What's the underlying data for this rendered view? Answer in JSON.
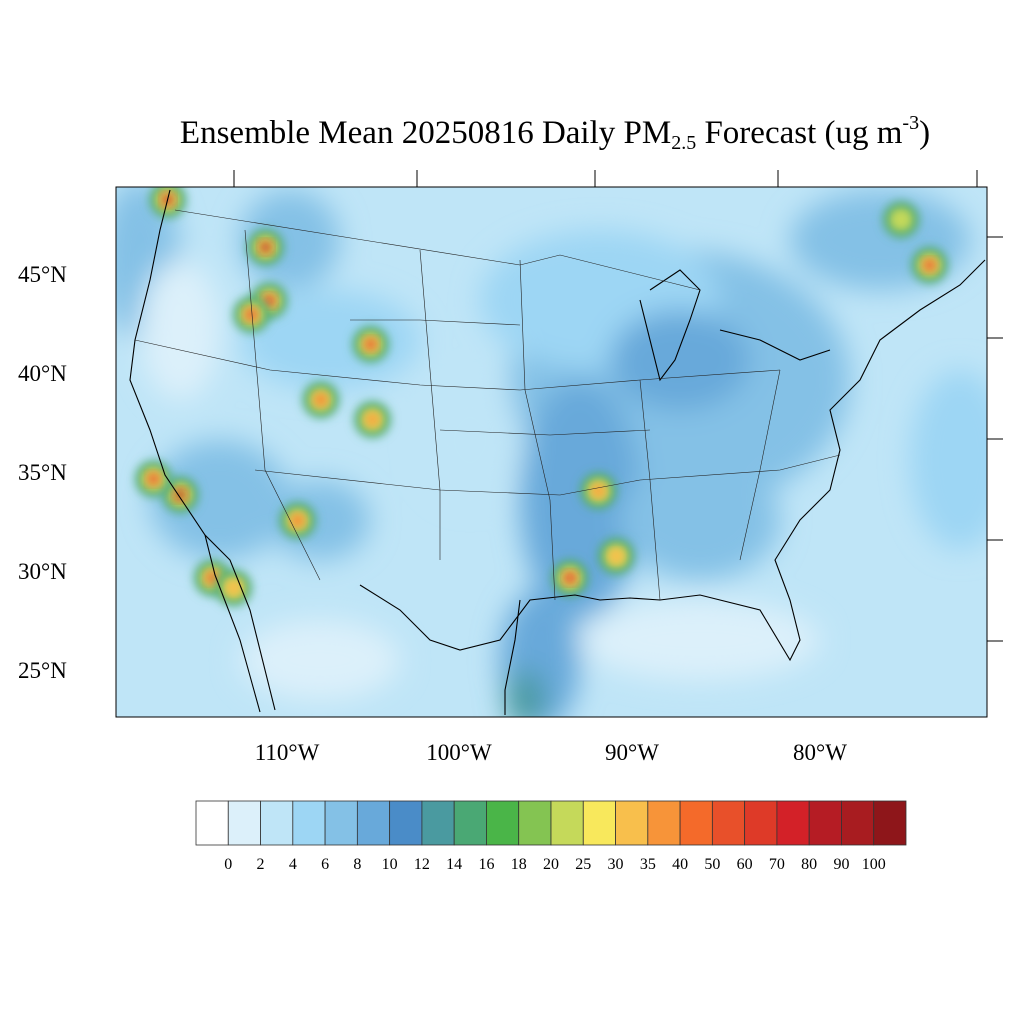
{
  "title": {
    "main": "Ensemble Mean 20250816 Daily PM",
    "sub": "2.5",
    "mid": " Forecast (ug m",
    "sup": "-3",
    "end": ")"
  },
  "lat_labels": [
    "45°N",
    "40°N",
    "35°N",
    "30°N",
    "25°N"
  ],
  "lon_labels": [
    "110°W",
    "100°W",
    "90°W",
    "80°W"
  ],
  "colorbar": {
    "labels": [
      "0",
      "2",
      "4",
      "6",
      "8",
      "10",
      "12",
      "14",
      "16",
      "18",
      "20",
      "25",
      "30",
      "35",
      "40",
      "50",
      "60",
      "70",
      "80",
      "90",
      "100"
    ],
    "colors": [
      "#ffffff",
      "#dcf0fa",
      "#bfe5f7",
      "#9dd6f4",
      "#84c1e6",
      "#68a9da",
      "#4a8cc8",
      "#4a9aa0",
      "#4aa874",
      "#4ab548",
      "#84c452",
      "#c5d95a",
      "#f8e85c",
      "#f8bf4c",
      "#f79439",
      "#f46a2a",
      "#e8502a",
      "#de3a28",
      "#d32128",
      "#b51c24",
      "#a81c20",
      "#8e161a"
    ]
  },
  "hotspots": [
    {
      "lon": -116.7,
      "lat": 48.8,
      "value": 80
    },
    {
      "lon": -111.2,
      "lat": 46.4,
      "value": 90
    },
    {
      "lon": -111.0,
      "lat": 43.7,
      "value": 70
    },
    {
      "lon": -112.0,
      "lat": 43.0,
      "value": 60
    },
    {
      "lon": -105.3,
      "lat": 41.5,
      "value": 60
    },
    {
      "lon": -108.1,
      "lat": 38.7,
      "value": 40
    },
    {
      "lon": -105.2,
      "lat": 37.7,
      "value": 35
    },
    {
      "lon": -116.0,
      "lat": 33.9,
      "value": 100
    },
    {
      "lon": -117.5,
      "lat": 34.7,
      "value": 60
    },
    {
      "lon": -114.2,
      "lat": 29.7,
      "value": 50
    },
    {
      "lon": -113.0,
      "lat": 29.2,
      "value": 30
    },
    {
      "lon": -109.4,
      "lat": 32.6,
      "value": 40
    },
    {
      "lon": -94.1,
      "lat": 29.7,
      "value": 70
    },
    {
      "lon": -92.5,
      "lat": 34.1,
      "value": 35
    },
    {
      "lon": -91.5,
      "lat": 30.8,
      "value": 30
    },
    {
      "lon": -73.9,
      "lat": 45.5,
      "value": 60
    },
    {
      "lon": -75.5,
      "lat": 47.8,
      "value": 20
    }
  ]
}
